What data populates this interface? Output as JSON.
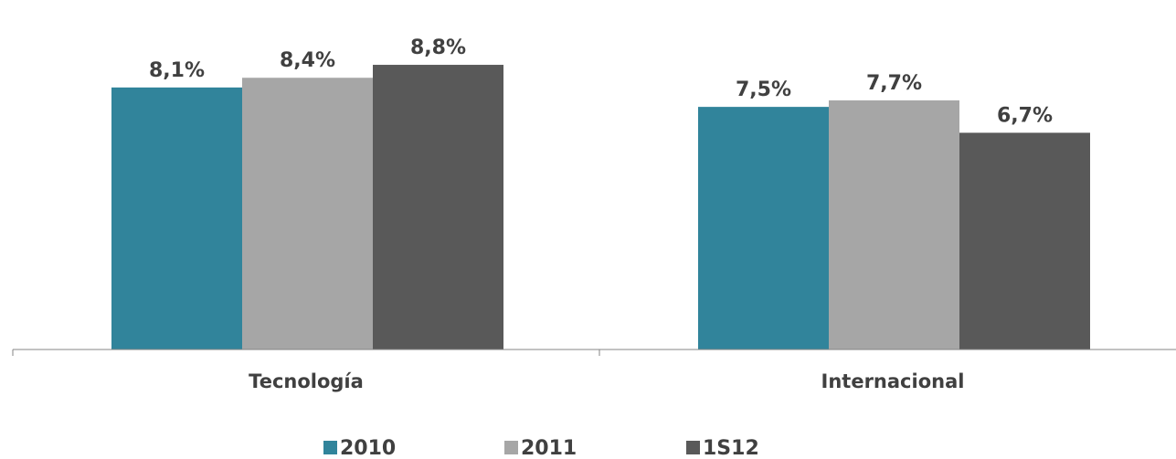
{
  "chart_data": {
    "type": "bar",
    "categories": [
      "Tecnología",
      "Internacional"
    ],
    "series": [
      {
        "name": "2010",
        "values": [
          8.1,
          7.5
        ],
        "labels": [
          "8,1%",
          "7,5%"
        ],
        "color": "#31849B"
      },
      {
        "name": "2011",
        "values": [
          8.4,
          7.7
        ],
        "labels": [
          "8,4%",
          "7,7%"
        ],
        "color": "#A6A6A6"
      },
      {
        "name": "1S12",
        "values": [
          8.8,
          6.7
        ],
        "labels": [
          "8,8%",
          "6,7%"
        ],
        "color": "#595959"
      }
    ],
    "title": "",
    "xlabel": "",
    "ylabel": "",
    "ylim": [
      0,
      8.8
    ],
    "grid": false,
    "legend": "bottom"
  }
}
